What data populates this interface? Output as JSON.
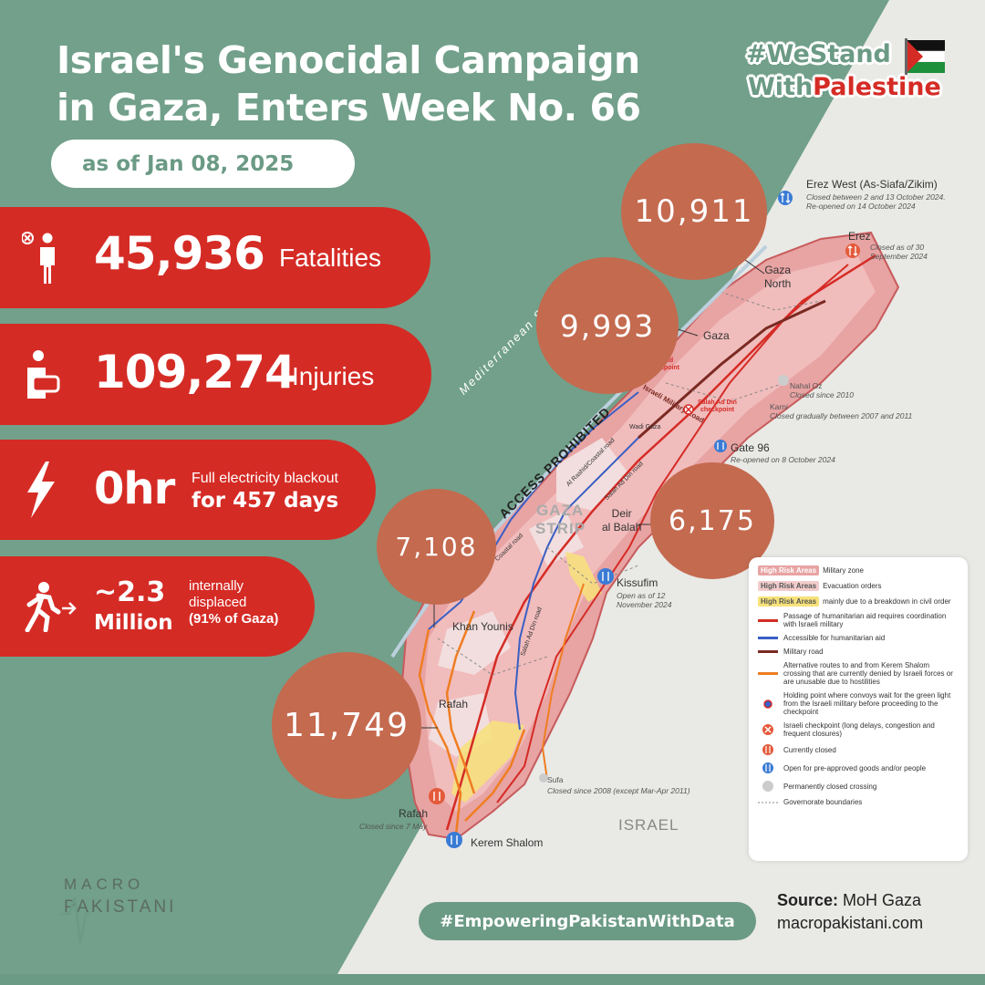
{
  "title": {
    "line1": "Israel's Genocidal Campaign",
    "line2": "in Gaza, Enters Week No. 66"
  },
  "date": "as of Jan 08, 2025",
  "hashtag_top": {
    "line1": "#WeStand",
    "line2a": "With",
    "line2b": "Palestine"
  },
  "stats": {
    "fatalities": {
      "value": "45,936",
      "label": "Fatalities",
      "icon": "person-x-icon"
    },
    "injuries": {
      "value": "109,274",
      "label": "Injuries",
      "icon": "injured-person-icon"
    },
    "electricity": {
      "value": "0hr",
      "label1": "Full electricity blackout",
      "label2": "for 457 days",
      "icon": "lightning-icon"
    },
    "displaced": {
      "value1": "~2.3",
      "value2": "Million",
      "label1": "internally",
      "label2": "displaced",
      "label3": "(91% of Gaza)",
      "icon": "running-person-icon"
    }
  },
  "governorates": {
    "north": {
      "value": "10,911",
      "name1": "Gaza",
      "name2": "North"
    },
    "gaza": {
      "value": "9,993",
      "name": "Gaza"
    },
    "deir": {
      "value": "6,175",
      "name1": "Deir",
      "name2": "al Balah"
    },
    "khan": {
      "value": "7,108",
      "name": "Khan Younis"
    },
    "rafah": {
      "value": "11,749",
      "name": "Rafah"
    }
  },
  "map": {
    "sea": "Mediterranean Sea",
    "access": "ACCESS PROHIBITED",
    "strip1": "GAZA",
    "strip2": "STRIP",
    "israel": "ISRAEL",
    "roads": {
      "rashid": "Al Rashid/Coastal road",
      "salah": "Salah Ad Din road",
      "wadi": "Wadi Gaza",
      "military": "Israeli Military Road",
      "salah2": "Salah Ad Din road",
      "coastal": "Coastal road"
    },
    "checkpoints": {
      "rashid_cp1": "Rashid",
      "rashid_cp2": "checkpoint",
      "salah_cp1": "Salah Ad Din",
      "salah_cp2": "checkpoint"
    },
    "crossings": {
      "erez_west": {
        "name": "Erez West (As-Siafa/Zikim)",
        "note1": "Closed between 2 and 13 October 2024.",
        "note2": "Re-opened on 14 October 2024"
      },
      "erez": {
        "name": "Erez",
        "note1": "Closed as of 30",
        "note2": "September 2024"
      },
      "nahal": {
        "name": "Nahal Oz",
        "note": "Closed since 2010"
      },
      "karni": {
        "name": "Karni",
        "note": "Closed gradually between 2007 and 2011"
      },
      "gate96": {
        "name": "Gate 96",
        "note": "Re-opened on 8 October 2024"
      },
      "kissufim": {
        "name": "Kissufim",
        "note1": "Open as of 12",
        "note2": "November 2024"
      },
      "sufa": {
        "name": "Sufa",
        "note": "Closed since  2008 (except Mar-Apr 2011)"
      },
      "rafah_x": {
        "name": "Rafah",
        "note": "Closed since 7 May"
      },
      "kerem": {
        "name": "Kerem Shalom"
      }
    }
  },
  "legend": {
    "tag": "High Risk Areas",
    "items": [
      {
        "text": "Military zone",
        "color": "#e8a3a3"
      },
      {
        "text": "Evacuation orders",
        "color": "#f3cccc"
      },
      {
        "text": "mainly due to a breakdown in civil order",
        "color": "#f7e27a"
      }
    ],
    "lines": [
      {
        "text": "Passage of humanitarian aid requires coordination with Israeli military",
        "color": "#d52b25"
      },
      {
        "text": "Accessible for humanitarian aid",
        "color": "#3a5fc4"
      },
      {
        "text": "Military road",
        "color": "#7a2a22"
      },
      {
        "text": "Alternative routes to and from Kerem Shalom crossing that are currently denied by Israeli forces or are unusable due to hostilities",
        "color": "#ef7d22"
      }
    ],
    "symbols": [
      {
        "text": "Holding point where convoys wait for the green light from the Israeli military before proceeding to the checkpoint",
        "icon": "holding-point-icon"
      },
      {
        "text": "Israeli checkpoint (long delays, congestion and frequent closures)",
        "icon": "checkpoint-icon"
      },
      {
        "text": "Currently closed",
        "icon": "closed-crossing-icon"
      },
      {
        "text": "Open for pre-approved goods and/or people",
        "icon": "open-crossing-icon"
      },
      {
        "text": "Permanently closed crossing",
        "icon": "permanently-closed-icon"
      },
      {
        "text": "Governorate boundaries",
        "icon": "boundary-line-icon"
      }
    ]
  },
  "footer": {
    "hashtag": "#EmpoweringPakistanWithData",
    "source_label": "Source:",
    "source_value": " MoH Gaza",
    "website": "macropakistani.com",
    "logo1": "MACRO",
    "logo2": "PAKISTANI"
  },
  "colors": {
    "green": "#6b9a85",
    "red": "#d52b25",
    "bubble": "#c46a4f",
    "zone": "#e8a3a3"
  }
}
